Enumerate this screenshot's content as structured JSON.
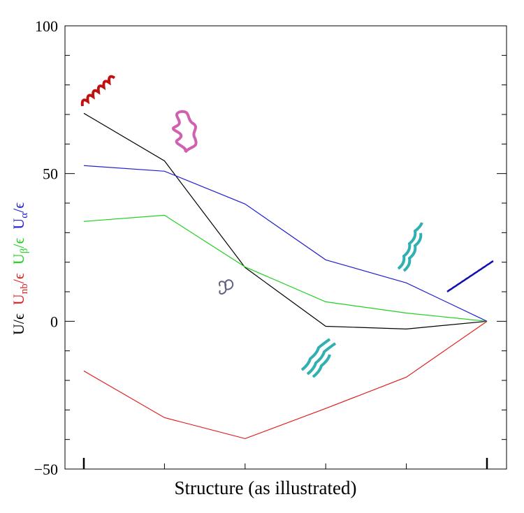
{
  "chart_data": {
    "type": "line",
    "x_label": "Structure (as illustrated)",
    "categories": [
      null,
      null,
      null,
      null,
      null,
      null
    ],
    "series": [
      {
        "name": "U",
        "name_suffix": "/ϵ",
        "color": "#000000",
        "values": [
          70.4,
          54.3,
          18.2,
          -1.7,
          -2.6,
          0
        ]
      },
      {
        "name": "U",
        "name_sub": "nb",
        "name_suffix": "/ϵ",
        "color": "#e02020",
        "values": [
          -16.8,
          -32.6,
          -39.7,
          -29.5,
          -18.9,
          0
        ]
      },
      {
        "name": "U",
        "name_sub": "β",
        "name_suffix": "/ϵ",
        "color": "#20d020",
        "values": [
          33.8,
          35.9,
          18.4,
          6.6,
          2.8,
          0
        ]
      },
      {
        "name": "U",
        "name_sub": "α",
        "name_suffix": "/ϵ",
        "color": "#2020d0",
        "values": [
          52.7,
          50.8,
          39.7,
          20.8,
          13,
          0
        ]
      }
    ],
    "ylim": [
      -50,
      100
    ],
    "yticks": [
      {
        "value": -50,
        "label": "−50"
      },
      0,
      50,
      100
    ],
    "yminorticks": [
      -40,
      -30,
      -20,
      -10,
      10,
      20,
      30,
      40,
      60,
      70,
      80,
      90
    ]
  }
}
